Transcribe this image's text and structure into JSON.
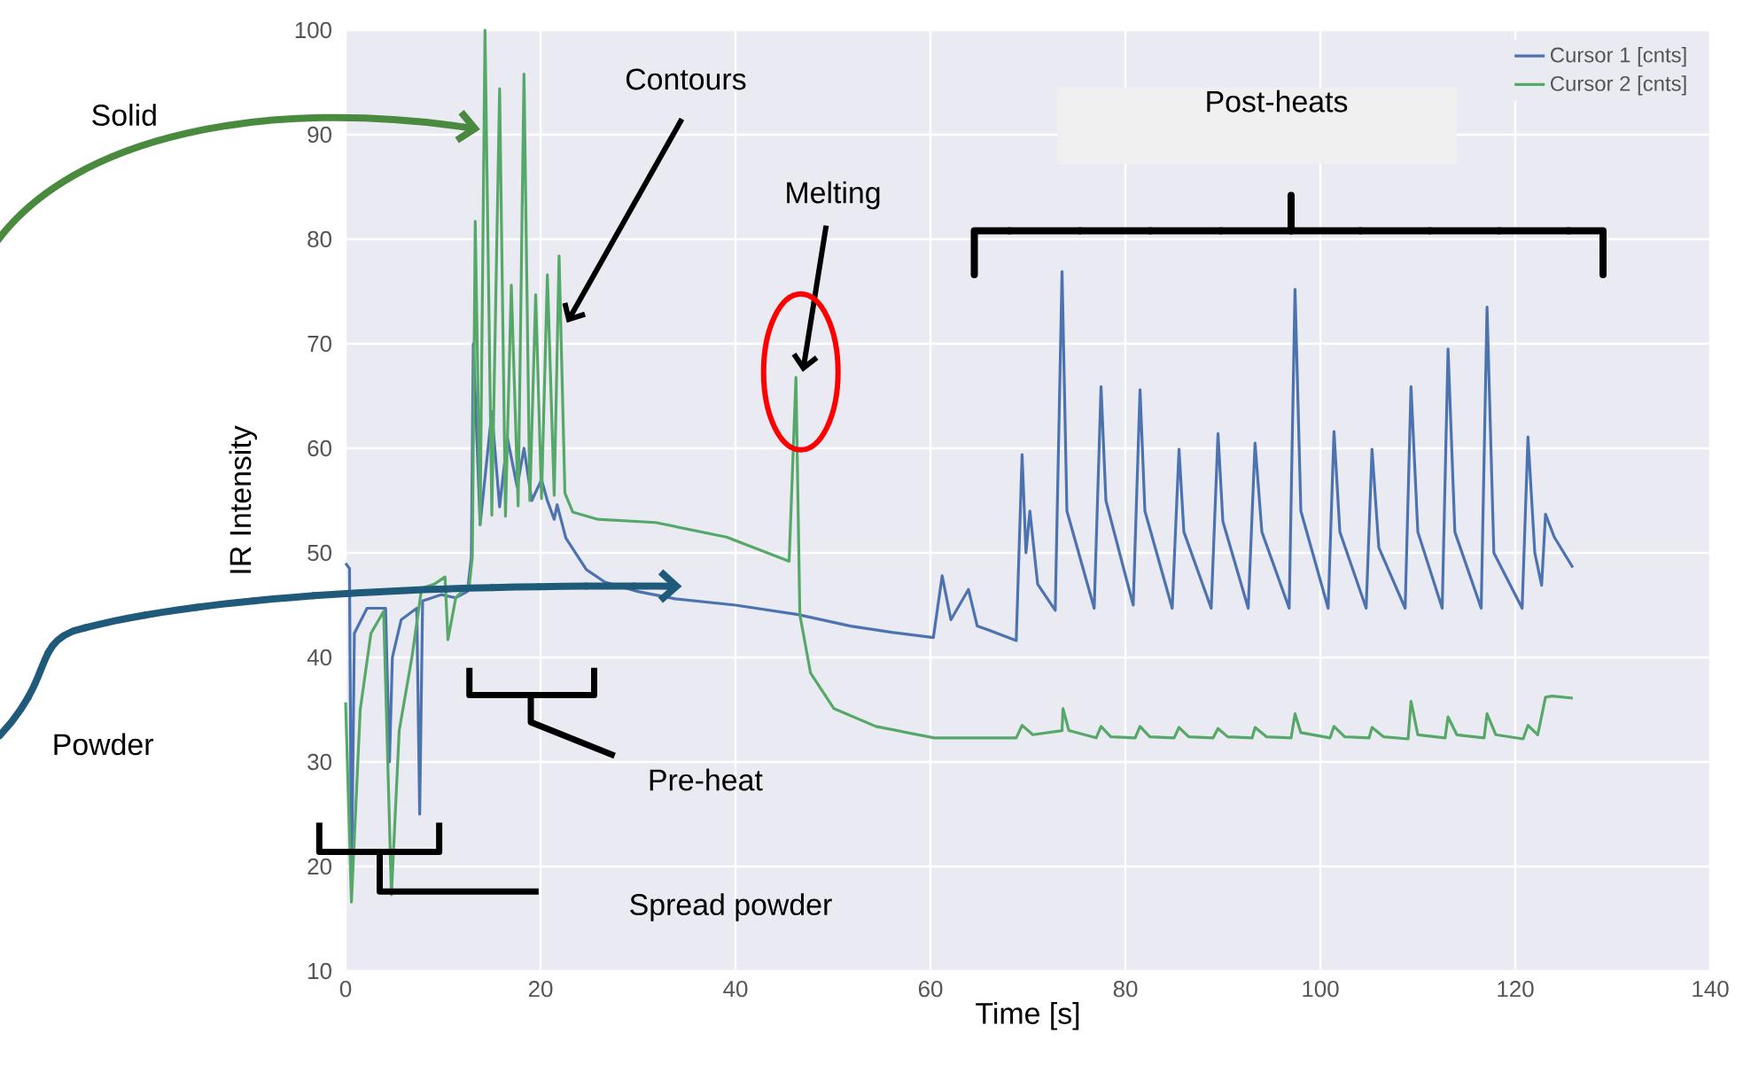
{
  "chart_data": {
    "type": "line",
    "xlabel": "Time [s]",
    "ylabel": "IR Intensity",
    "xlim": [
      0,
      140
    ],
    "xticks": [
      0,
      20,
      40,
      60,
      80,
      100,
      120,
      140
    ],
    "ylim": [
      10,
      100
    ],
    "yticks": [
      10,
      20,
      30,
      40,
      50,
      60,
      70,
      80,
      90,
      100
    ],
    "grid": true,
    "legend": "top right",
    "annotations": [
      "Solid",
      {
        "text": "Contours",
        "x": 22.7,
        "y": 72
      },
      {
        "text": "Melting",
        "x": 46.9,
        "y": 67.3
      },
      "Powder",
      "Pre-heat",
      "Spread powder",
      "Post-heats"
    ],
    "series": [
      {
        "name": "Cursor 1 [cnts]",
        "color": "#4c72b0",
        "x": [
          0,
          0.4,
          0.6,
          0.9,
          2.2,
          4.1,
          4.5,
          4.8,
          5.7,
          7.3,
          7.6,
          7.9,
          9.8,
          11.3,
          12.5,
          12.9,
          13.1,
          13.8,
          15,
          15.8,
          16.6,
          17.6,
          18.3,
          19.1,
          20.1,
          20.7,
          21.4,
          21.7,
          22.6,
          24.7,
          26.6,
          30,
          33.8,
          40,
          46.4,
          51.8,
          56,
          60.3,
          61.2,
          62.1,
          63.9,
          64.8,
          66,
          68.8,
          69.4,
          69.8,
          70.2,
          71,
          72.8,
          73.5,
          74,
          76.8,
          77.5,
          78,
          80.8,
          81.5,
          82,
          84.8,
          85.5,
          86,
          88.8,
          89.5,
          90,
          92.6,
          93.3,
          94,
          96.8,
          97.4,
          98,
          100.8,
          101.4,
          102,
          104.7,
          105.3,
          106,
          108.7,
          109.3,
          110,
          112.5,
          113.1,
          113.8,
          116.5,
          117.1,
          117.8,
          120.7,
          121.3,
          122,
          122.7,
          123.1,
          124,
          125.9
        ],
        "values": [
          49,
          48.5,
          18,
          42.3,
          44.7,
          44.7,
          30,
          40,
          43.6,
          44.7,
          25,
          45.4,
          46,
          45.7,
          46.3,
          49.6,
          70,
          52.7,
          63.5,
          54.4,
          61,
          56.3,
          60,
          55,
          57,
          55,
          53.2,
          54.6,
          51.4,
          48.4,
          47.2,
          46.3,
          45.6,
          45,
          44.1,
          43,
          42.4,
          41.9,
          47.8,
          43.6,
          46.5,
          43,
          42.6,
          41.6,
          59.4,
          50,
          54,
          47,
          44.5,
          76.9,
          54,
          44.7,
          65.9,
          55,
          45,
          65.6,
          54,
          44.7,
          59.9,
          52,
          44.7,
          61.4,
          53,
          44.7,
          60.5,
          52,
          44.7,
          75.2,
          54,
          44.7,
          61.6,
          52,
          44.7,
          59.9,
          50.5,
          44.7,
          65.9,
          52,
          44.7,
          69.5,
          52,
          44.7,
          73.5,
          50,
          44.7,
          61.1,
          50,
          46.9,
          53.7,
          51.5,
          48.6
        ]
      },
      {
        "name": "Cursor 2 [cnts]",
        "color": "#55a868",
        "x": [
          0,
          0.6,
          1.5,
          2.6,
          3.9,
          4.7,
          5.5,
          6.8,
          7.8,
          9.1,
          10.2,
          10.5,
          11.3,
          12.7,
          13,
          13.3,
          13.8,
          14.3,
          15,
          15.8,
          16.4,
          17,
          17.7,
          18.3,
          18.9,
          19.5,
          20.1,
          20.7,
          21.4,
          21.9,
          22.5,
          23.3,
          25.9,
          31.8,
          39.1,
          45.5,
          46.2,
          46.6,
          47.7,
          50.1,
          54.4,
          60.4,
          68.8,
          69.4,
          70.5,
          73.5,
          73.6,
          74.2,
          77,
          77.5,
          78.5,
          81,
          81.5,
          82.5,
          85,
          85.5,
          86.5,
          89,
          89.5,
          90.5,
          93,
          93.3,
          94.5,
          97,
          97.4,
          98,
          101,
          101.4,
          102.5,
          105,
          105.3,
          106.5,
          109,
          109.3,
          110,
          112.8,
          113.1,
          114,
          116.8,
          117.1,
          118,
          120.8,
          121.3,
          122.3,
          123.1,
          123.8,
          125.9
        ],
        "values": [
          35.7,
          16.6,
          35,
          42.3,
          44.4,
          17.3,
          33,
          40,
          46.6,
          47,
          47.7,
          41.7,
          45.7,
          47,
          49.6,
          81.7,
          52.7,
          100,
          53.6,
          94.4,
          53.5,
          75.6,
          54.5,
          95.8,
          55,
          74.7,
          55.2,
          76.6,
          55.5,
          78.4,
          55.7,
          53.9,
          53.2,
          52.9,
          51.5,
          49.2,
          66.8,
          44.1,
          38.5,
          35.1,
          33.4,
          32.3,
          32.3,
          33.5,
          32.6,
          33,
          35.1,
          33,
          32.3,
          33.4,
          32.4,
          32.3,
          33.4,
          32.4,
          32.3,
          33.3,
          32.4,
          32.3,
          33.2,
          32.4,
          32.3,
          33.3,
          32.4,
          32.3,
          34.6,
          32.8,
          32.3,
          33.4,
          32.4,
          32.3,
          33.3,
          32.4,
          32.2,
          35.8,
          32.6,
          32.3,
          34.3,
          32.6,
          32.3,
          34.6,
          32.6,
          32.2,
          33.5,
          32.6,
          36.2,
          36.3,
          36.1
        ]
      }
    ]
  }
}
